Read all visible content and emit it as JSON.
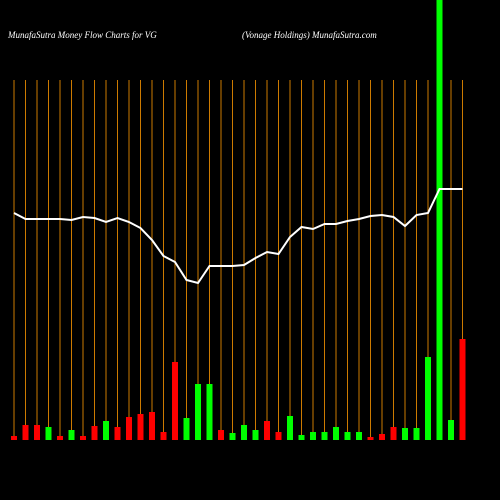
{
  "chart_data": {
    "type": "money-flow",
    "title": "MunafaSutra  Money Flow  Charts for VG",
    "subtitle": "(Vonage   Holdings) MunafaSutra.com",
    "ylim": [
      0,
      360
    ],
    "bar_values": [
      4,
      15,
      15,
      13,
      4,
      10,
      4,
      14,
      19,
      13,
      23,
      26,
      28,
      8,
      78,
      22,
      56,
      56,
      10,
      7,
      15,
      10,
      19,
      8,
      24,
      5,
      8,
      8,
      13,
      8,
      8,
      3,
      6,
      13,
      12,
      12,
      83,
      440,
      20,
      101
    ],
    "bar_colors": [
      "#ff0000",
      "#ff0000",
      "#ff0000",
      "#00ff00",
      "#ff0000",
      "#00ff00",
      "#ff0000",
      "#ff0000",
      "#00ff00",
      "#ff0000",
      "#ff0000",
      "#ff0000",
      "#ff0000",
      "#ff0000",
      "#ff0000",
      "#00ff00",
      "#00ff00",
      "#00ff00",
      "#ff0000",
      "#00ff00",
      "#00ff00",
      "#00ff00",
      "#ff0000",
      "#ff0000",
      "#00ff00",
      "#00ff00",
      "#00ff00",
      "#00ff00",
      "#00ff00",
      "#00ff00",
      "#00ff00",
      "#ff0000",
      "#ff0000",
      "#ff0000",
      "#00ff00",
      "#00ff00",
      "#00ff00",
      "#00ff00",
      "#00ff00",
      "#ff0000"
    ],
    "line_values": [
      227,
      221,
      221,
      221,
      221,
      220,
      223,
      222,
      218,
      222,
      218,
      212,
      200,
      184,
      178,
      160,
      157,
      174,
      174,
      174,
      175,
      182,
      188,
      186,
      203,
      213,
      211,
      216,
      216,
      219,
      221,
      224,
      225,
      223,
      214,
      225,
      227,
      251,
      251,
      251
    ],
    "line_color": "#ffffff",
    "grid_color": "#cc7a00"
  }
}
